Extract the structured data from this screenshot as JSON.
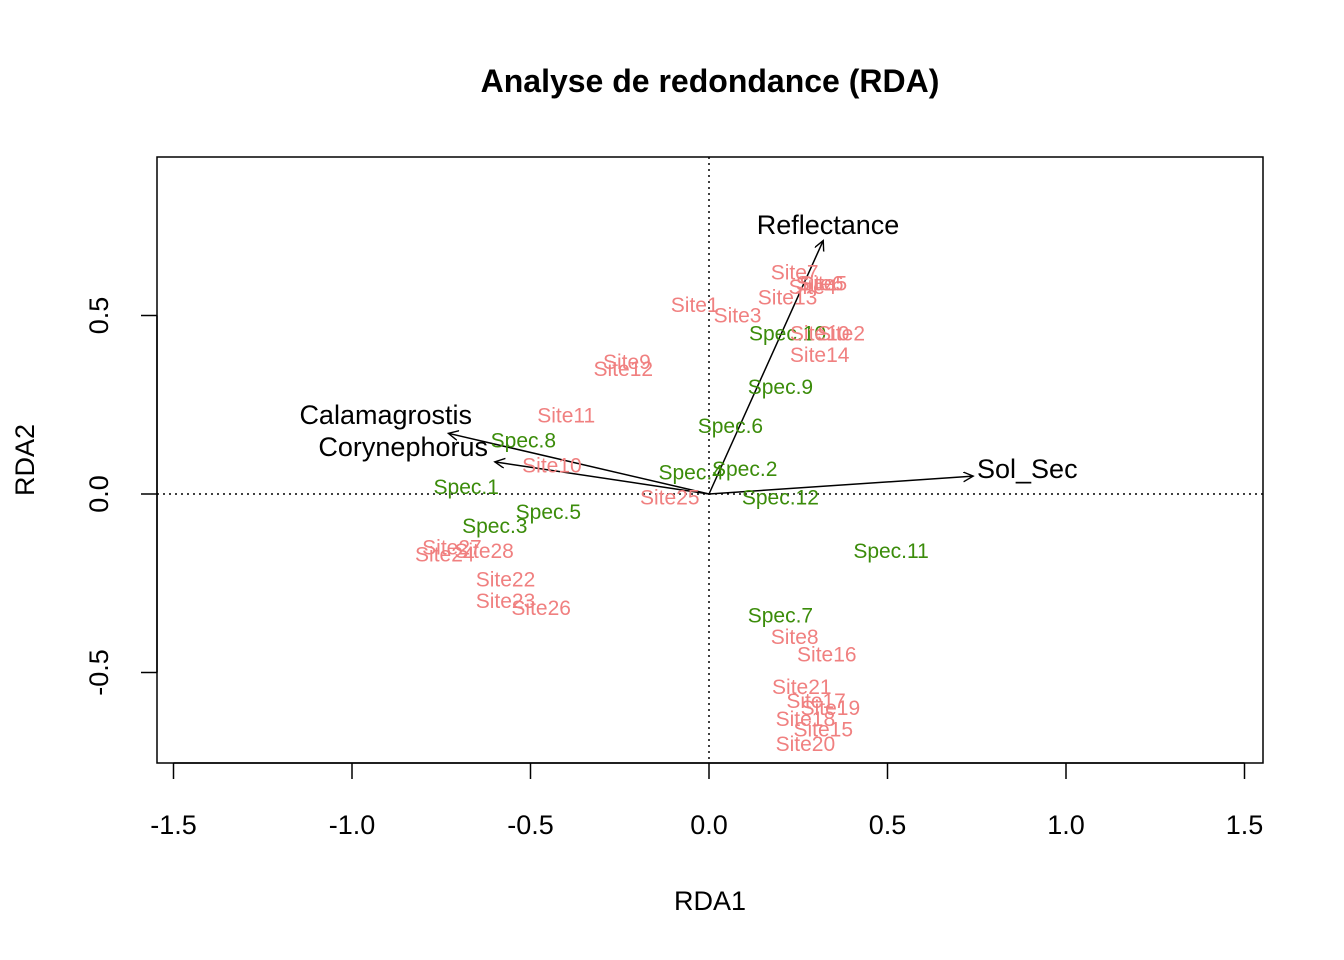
{
  "chart_data": {
    "type": "scatter",
    "title": "Analyse de redondance (RDA)",
    "xlabel": "RDA1",
    "ylabel": "RDA2",
    "xlim": [
      -1.5,
      1.5
    ],
    "ylim": [
      -0.75,
      0.95
    ],
    "x_ticks": [
      "-1.5",
      "-1.0",
      "-0.5",
      "0.0",
      "0.5",
      "1.0",
      "1.5"
    ],
    "y_ticks": [
      "-0.5",
      "0.0",
      "0.5"
    ],
    "colors": {
      "sites": "#F08080",
      "species": "#3B8C0A",
      "arrows": "#000000"
    },
    "reference_lines": {
      "x": 0,
      "y": 0,
      "style": "dotted"
    },
    "sites": [
      {
        "label": "Site1",
        "x": -0.04,
        "y": 0.53
      },
      {
        "label": "Site3",
        "x": 0.08,
        "y": 0.5
      },
      {
        "label": "Site7",
        "x": 0.24,
        "y": 0.62
      },
      {
        "label": "Site6",
        "x": 0.31,
        "y": 0.59
      },
      {
        "label": "Site5",
        "x": 0.32,
        "y": 0.59
      },
      {
        "label": "Site4",
        "x": 0.29,
        "y": 0.58
      },
      {
        "label": "Site13",
        "x": 0.22,
        "y": 0.55
      },
      {
        "label": "Site10",
        "x": 0.31,
        "y": 0.45
      },
      {
        "label": "Site2",
        "x": 0.37,
        "y": 0.45
      },
      {
        "label": "Site14",
        "x": 0.31,
        "y": 0.39
      },
      {
        "label": "Site9",
        "x": -0.23,
        "y": 0.37
      },
      {
        "label": "Site12",
        "x": -0.24,
        "y": 0.35
      },
      {
        "label": "Site11",
        "x": -0.4,
        "y": 0.22
      },
      {
        "label": "Site10",
        "x": -0.44,
        "y": 0.08
      },
      {
        "label": "Site25",
        "x": -0.11,
        "y": -0.01
      },
      {
        "label": "Site27",
        "x": -0.72,
        "y": -0.15
      },
      {
        "label": "Site24",
        "x": -0.74,
        "y": -0.17
      },
      {
        "label": "Site28",
        "x": -0.63,
        "y": -0.16
      },
      {
        "label": "Site22",
        "x": -0.57,
        "y": -0.24
      },
      {
        "label": "Site23",
        "x": -0.57,
        "y": -0.3
      },
      {
        "label": "Site26",
        "x": -0.47,
        "y": -0.32
      },
      {
        "label": "Site8",
        "x": 0.24,
        "y": -0.4
      },
      {
        "label": "Site16",
        "x": 0.33,
        "y": -0.45
      },
      {
        "label": "Site21",
        "x": 0.26,
        "y": -0.54
      },
      {
        "label": "Site17",
        "x": 0.3,
        "y": -0.58
      },
      {
        "label": "Site19",
        "x": 0.34,
        "y": -0.6
      },
      {
        "label": "Site18",
        "x": 0.27,
        "y": -0.63
      },
      {
        "label": "Site15",
        "x": 0.32,
        "y": -0.66
      },
      {
        "label": "Site20",
        "x": 0.27,
        "y": -0.7
      }
    ],
    "species": [
      {
        "label": "Spec.10",
        "x": 0.22,
        "y": 0.45
      },
      {
        "label": "Spec.9",
        "x": 0.2,
        "y": 0.3
      },
      {
        "label": "Spec.6",
        "x": 0.06,
        "y": 0.19
      },
      {
        "label": "Spec.8",
        "x": -0.52,
        "y": 0.15
      },
      {
        "label": "Spec.2",
        "x": 0.1,
        "y": 0.07
      },
      {
        "label": "Spec.4",
        "x": -0.05,
        "y": 0.06
      },
      {
        "label": "Spec.1",
        "x": -0.68,
        "y": 0.02
      },
      {
        "label": "Spec.12",
        "x": 0.2,
        "y": -0.01
      },
      {
        "label": "Spec.5",
        "x": -0.45,
        "y": -0.05
      },
      {
        "label": "Spec.3",
        "x": -0.6,
        "y": -0.09
      },
      {
        "label": "Spec.11",
        "x": 0.51,
        "y": -0.16
      },
      {
        "label": "Spec.7",
        "x": 0.2,
        "y": -0.34
      }
    ],
    "arrows": [
      {
        "label": "Reflectance",
        "x": 0.32,
        "y": 0.71
      },
      {
        "label": "Calamagrostis",
        "x": -0.73,
        "y": 0.17
      },
      {
        "label": "Corynephorus",
        "x": -0.6,
        "y": 0.09
      },
      {
        "label": "Sol_Sec",
        "x": 0.74,
        "y": 0.05
      }
    ]
  }
}
